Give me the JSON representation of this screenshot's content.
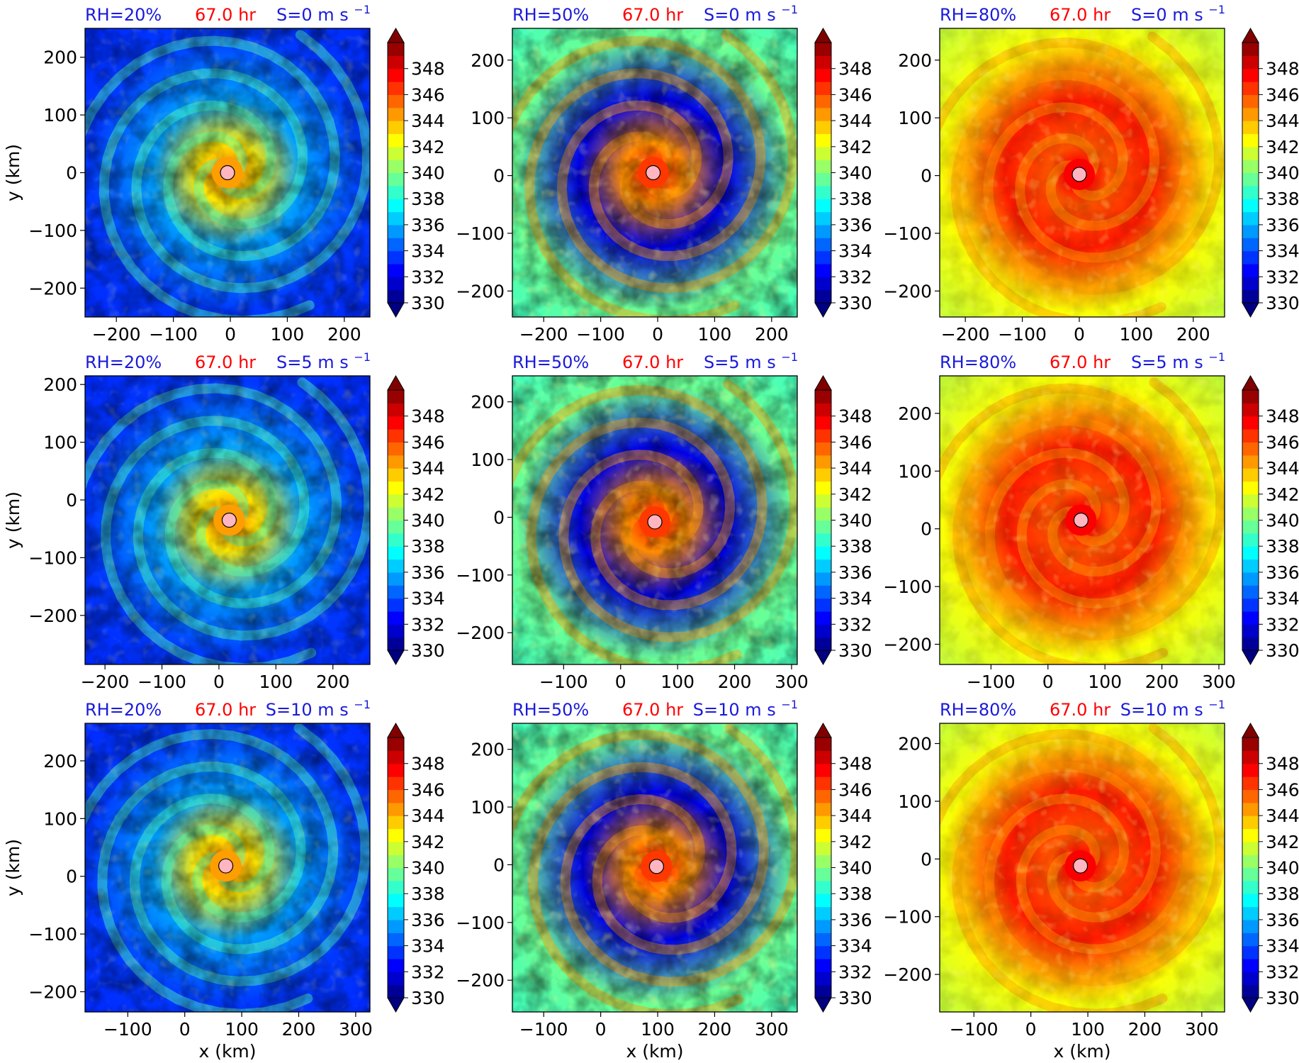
{
  "figure": {
    "xlabel": "x (km)",
    "ylabel": "y (km)",
    "time_label": "67.0 hr",
    "colors": {
      "title_blue": "#1a1adb",
      "title_red": "#ff0000",
      "center_marker": "#ffb6c1"
    },
    "colormap": "jet",
    "colorbar": {
      "min": 330,
      "max": 350,
      "step": 1,
      "extend": "both",
      "ticks": [
        330,
        332,
        334,
        336,
        338,
        340,
        342,
        344,
        346,
        348
      ],
      "tick_labels": [
        "330",
        "332",
        "334",
        "336",
        "338",
        "340",
        "342",
        "344",
        "346",
        "348"
      ]
    }
  },
  "chart_data": [
    {
      "type": "heatmap",
      "rh": "RH=20%",
      "time": "67.0 hr",
      "shear": "S=0 m s",
      "shear_exp": "−1",
      "shear_value": 0,
      "xlim": [
        -255,
        245
      ],
      "ylim": [
        -250,
        250
      ],
      "xticks": [
        -200,
        -100,
        0,
        100,
        200
      ],
      "yticks": [
        -200,
        -100,
        0,
        100,
        200
      ],
      "center": [
        -5,
        0
      ],
      "pattern": "dry"
    },
    {
      "type": "heatmap",
      "rh": "RH=50%",
      "time": "67.0 hr",
      "shear": "S=0 m s",
      "shear_exp": "−1",
      "shear_value": 0,
      "xlim": [
        -255,
        245
      ],
      "ylim": [
        -245,
        255
      ],
      "xticks": [
        -200,
        -100,
        0,
        100,
        200
      ],
      "yticks": [
        -200,
        -100,
        0,
        100,
        200
      ],
      "center": [
        -8,
        5
      ],
      "pattern": "moderate"
    },
    {
      "type": "heatmap",
      "rh": "RH=80%",
      "time": "67.0 hr",
      "shear": "S=0 m s",
      "shear_exp": "−1",
      "shear_value": 0,
      "xlim": [
        -245,
        255
      ],
      "ylim": [
        -245,
        255
      ],
      "xticks": [
        -200,
        -100,
        0,
        100,
        200
      ],
      "yticks": [
        -200,
        -100,
        0,
        100,
        200
      ],
      "center": [
        0,
        2
      ],
      "pattern": "moist"
    },
    {
      "type": "heatmap",
      "rh": "RH=20%",
      "time": "67.0 hr",
      "shear": "S=5 m s",
      "shear_exp": "−1",
      "shear_value": 5,
      "xlim": [
        -235,
        265
      ],
      "ylim": [
        -285,
        215
      ],
      "xticks": [
        -200,
        -100,
        0,
        100,
        200
      ],
      "yticks": [
        -200,
        -100,
        0,
        100,
        200
      ],
      "center": [
        18,
        -35
      ],
      "pattern": "dry"
    },
    {
      "type": "heatmap",
      "rh": "RH=50%",
      "time": "67.0 hr",
      "shear": "S=5 m s",
      "shear_exp": "−1",
      "shear_value": 5,
      "xlim": [
        -190,
        310
      ],
      "ylim": [
        -255,
        245
      ],
      "xticks": [
        -100,
        0,
        100,
        200,
        300
      ],
      "yticks": [
        -200,
        -100,
        0,
        100,
        200
      ],
      "center": [
        60,
        -8
      ],
      "pattern": "moderate"
    },
    {
      "type": "heatmap",
      "rh": "RH=80%",
      "time": "67.0 hr",
      "shear": "S=5 m s",
      "shear_exp": "−1",
      "shear_value": 5,
      "xlim": [
        -190,
        310
      ],
      "ylim": [
        -235,
        265
      ],
      "xticks": [
        -100,
        0,
        100,
        200,
        300
      ],
      "yticks": [
        -200,
        -100,
        0,
        100,
        200
      ],
      "center": [
        58,
        15
      ],
      "pattern": "moist"
    },
    {
      "type": "heatmap",
      "rh": "RH=20%",
      "time": "67.0 hr",
      "shear": "S=10 m s",
      "shear_exp": "−1",
      "shear_value": 10,
      "xlim": [
        -175,
        325
      ],
      "ylim": [
        -235,
        265
      ],
      "xticks": [
        -100,
        0,
        100,
        200,
        300
      ],
      "yticks": [
        -200,
        -100,
        0,
        100,
        200
      ],
      "center": [
        72,
        18
      ],
      "pattern": "dry"
    },
    {
      "type": "heatmap",
      "rh": "RH=50%",
      "time": "67.0 hr",
      "shear": "S=10 m s",
      "shear_exp": "−1",
      "shear_value": 10,
      "xlim": [
        -155,
        345
      ],
      "ylim": [
        -255,
        245
      ],
      "xticks": [
        -100,
        0,
        100,
        200,
        300
      ],
      "yticks": [
        -200,
        -100,
        0,
        100,
        200
      ],
      "center": [
        98,
        -3
      ],
      "pattern": "moderate"
    },
    {
      "type": "heatmap",
      "rh": "RH=80%",
      "time": "67.0 hr",
      "shear": "S=10 m s",
      "shear_exp": "−1",
      "shear_value": 10,
      "xlim": [
        -160,
        340
      ],
      "ylim": [
        -265,
        235
      ],
      "xticks": [
        -100,
        0,
        100,
        200,
        300
      ],
      "yticks": [
        -200,
        -100,
        0,
        100,
        200
      ],
      "center": [
        87,
        -12
      ],
      "pattern": "moist"
    }
  ]
}
